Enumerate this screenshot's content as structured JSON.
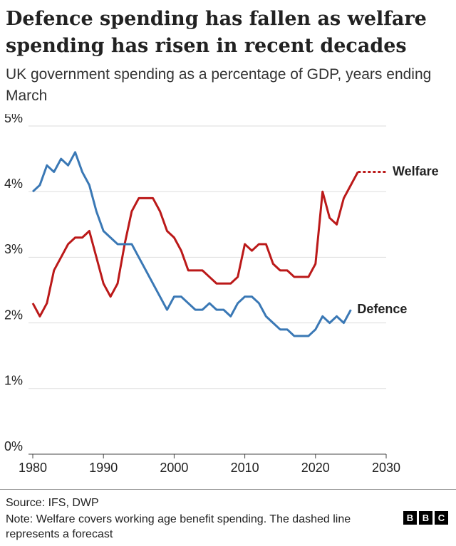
{
  "chart_data": {
    "type": "line",
    "title": "Defence spending has fallen as welfare spending has risen in recent decades",
    "subtitle": "UK government spending as a percentage of GDP, years ending March",
    "x": [
      1980,
      1981,
      1982,
      1983,
      1984,
      1985,
      1986,
      1987,
      1988,
      1989,
      1990,
      1991,
      1992,
      1993,
      1994,
      1995,
      1996,
      1997,
      1998,
      1999,
      2000,
      2001,
      2002,
      2003,
      2004,
      2005,
      2006,
      2007,
      2008,
      2009,
      2010,
      2011,
      2012,
      2013,
      2014,
      2015,
      2016,
      2017,
      2018,
      2019,
      2020,
      2021,
      2022,
      2023,
      2024,
      2025,
      2026,
      2027,
      2028,
      2029,
      2030
    ],
    "series": [
      {
        "name": "Welfare",
        "color": "#bb1919",
        "dashed_from": 2026,
        "values": [
          2.3,
          2.1,
          2.3,
          2.8,
          3.0,
          3.2,
          3.3,
          3.3,
          3.4,
          3.0,
          2.6,
          2.4,
          2.6,
          3.2,
          3.7,
          3.9,
          3.9,
          3.9,
          3.7,
          3.4,
          3.3,
          3.1,
          2.8,
          2.8,
          2.8,
          2.7,
          2.6,
          2.6,
          2.6,
          2.7,
          3.2,
          3.1,
          3.2,
          3.2,
          2.9,
          2.8,
          2.8,
          2.7,
          2.7,
          2.7,
          2.9,
          4.0,
          3.6,
          3.5,
          3.9,
          4.1,
          4.3,
          4.3,
          4.3,
          4.3,
          4.3
        ]
      },
      {
        "name": "Defence",
        "color": "#3a78b5",
        "values": [
          4.0,
          4.1,
          4.4,
          4.3,
          4.5,
          4.4,
          4.6,
          4.3,
          4.1,
          3.7,
          3.4,
          3.3,
          3.2,
          3.2,
          3.2,
          3.0,
          2.8,
          2.6,
          2.4,
          2.2,
          2.4,
          2.4,
          2.3,
          2.2,
          2.2,
          2.3,
          2.2,
          2.2,
          2.1,
          2.3,
          2.4,
          2.4,
          2.3,
          2.1,
          2.0,
          1.9,
          1.9,
          1.8,
          1.8,
          1.8,
          1.9,
          2.1,
          2.0,
          2.1,
          2.0,
          2.2,
          null,
          null,
          null,
          null,
          null
        ]
      }
    ],
    "xlim": [
      1980,
      2030
    ],
    "xticks": [
      1980,
      1990,
      2000,
      2010,
      2020,
      2030
    ],
    "ylim": [
      0,
      5
    ],
    "yticks": [
      {
        "value": 0,
        "label": "0%"
      },
      {
        "value": 1,
        "label": "1%"
      },
      {
        "value": 2,
        "label": "2%"
      },
      {
        "value": 3,
        "label": "3%"
      },
      {
        "value": 4,
        "label": "4%"
      },
      {
        "value": 5,
        "label": "5%"
      }
    ],
    "grid": true,
    "source": "Source: IFS, DWP",
    "note": "Note: Welfare covers working age benefit spending. The dashed line represents a forecast"
  }
}
